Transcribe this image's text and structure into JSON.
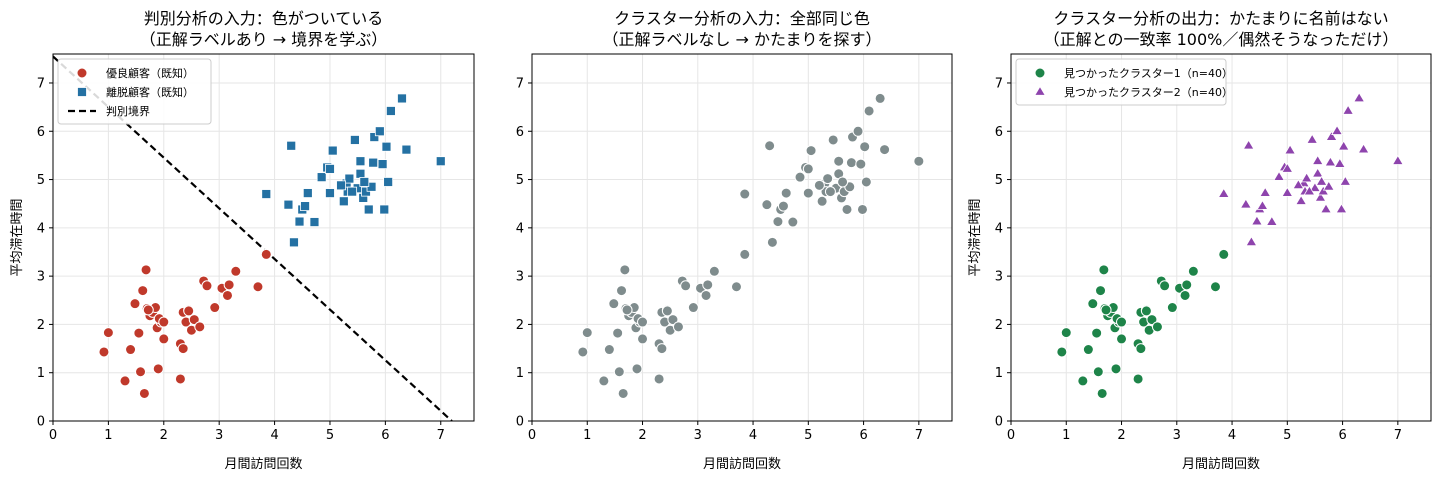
{
  "chart_data": [
    {
      "type": "scatter",
      "title": "判別分析の入力：色がついている",
      "subtitle": "（正解ラベルあり → 境界を学ぶ）",
      "xlabel": "月間訪問回数",
      "ylabel": "平均滞在時間",
      "xlim": [
        0,
        7.6
      ],
      "ylim": [
        0,
        7.6
      ],
      "xticks": [
        "0",
        "1",
        "2",
        "3",
        "4",
        "5",
        "6",
        "7"
      ],
      "yticks": [
        "0",
        "1",
        "2",
        "3",
        "4",
        "5",
        "6",
        "7"
      ],
      "grid": true,
      "legend_position": "top-left",
      "series": [
        {
          "name": "優良顧客（既知）",
          "marker": "circle",
          "color": "#c0392b",
          "points": [
            [
              0.92,
              1.43
            ],
            [
              1.0,
              1.83
            ],
            [
              1.3,
              0.83
            ],
            [
              1.4,
              1.48
            ],
            [
              1.48,
              2.43
            ],
            [
              1.55,
              1.82
            ],
            [
              1.58,
              1.02
            ],
            [
              1.62,
              2.7
            ],
            [
              1.65,
              0.57
            ],
            [
              1.68,
              3.13
            ],
            [
              1.7,
              2.33
            ],
            [
              1.75,
              2.18
            ],
            [
              1.8,
              2.25
            ],
            [
              1.85,
              2.35
            ],
            [
              1.88,
              1.93
            ],
            [
              1.9,
              1.08
            ],
            [
              1.95,
              2.05
            ],
            [
              2.0,
              1.7
            ],
            [
              2.3,
              1.6
            ],
            [
              2.3,
              0.87
            ],
            [
              2.35,
              2.25
            ],
            [
              2.35,
              1.5
            ],
            [
              2.4,
              2.05
            ],
            [
              2.45,
              2.3
            ],
            [
              2.5,
              1.88
            ],
            [
              2.55,
              2.1
            ],
            [
              2.65,
              1.95
            ],
            [
              2.72,
              2.9
            ],
            [
              2.78,
              2.8
            ],
            [
              2.92,
              2.35
            ],
            [
              3.05,
              2.75
            ],
            [
              3.15,
              2.6
            ],
            [
              3.18,
              2.82
            ],
            [
              3.3,
              3.1
            ],
            [
              3.7,
              2.78
            ],
            [
              3.85,
              3.45
            ],
            [
              2.45,
              2.28
            ],
            [
              1.92,
              2.12
            ],
            [
              2.0,
              2.05
            ],
            [
              1.72,
              2.3
            ]
          ]
        },
        {
          "name": "離脱顧客（既知）",
          "marker": "square",
          "color": "#2471a3",
          "points": [
            [
              3.85,
              4.7
            ],
            [
              4.25,
              4.48
            ],
            [
              4.3,
              5.7
            ],
            [
              4.35,
              3.7
            ],
            [
              4.45,
              4.13
            ],
            [
              4.5,
              4.38
            ],
            [
              4.55,
              4.45
            ],
            [
              4.6,
              4.72
            ],
            [
              4.72,
              4.12
            ],
            [
              4.85,
              5.05
            ],
            [
              4.95,
              5.25
            ],
            [
              5.0,
              4.72
            ],
            [
              5.05,
              5.6
            ],
            [
              5.25,
              4.55
            ],
            [
              5.3,
              4.92
            ],
            [
              5.32,
              4.75
            ],
            [
              5.35,
              5.02
            ],
            [
              5.45,
              5.82
            ],
            [
              5.5,
              4.82
            ],
            [
              5.55,
              5.38
            ],
            [
              5.55,
              5.12
            ],
            [
              5.6,
              4.62
            ],
            [
              5.65,
              4.75
            ],
            [
              5.7,
              4.38
            ],
            [
              5.75,
              4.85
            ],
            [
              5.78,
              5.35
            ],
            [
              5.8,
              5.88
            ],
            [
              5.9,
              6.0
            ],
            [
              5.95,
              5.32
            ],
            [
              5.98,
              4.38
            ],
            [
              6.02,
              5.68
            ],
            [
              6.05,
              4.95
            ],
            [
              6.1,
              6.42
            ],
            [
              6.3,
              6.68
            ],
            [
              6.38,
              5.62
            ],
            [
              7.0,
              5.38
            ],
            [
              5.4,
              4.75
            ],
            [
              5.62,
              4.95
            ],
            [
              5.2,
              4.88
            ],
            [
              5.0,
              5.22
            ]
          ]
        }
      ],
      "boundary": {
        "name": "判別境界",
        "from": [
          0,
          7.55
        ],
        "to": [
          7.2,
          0
        ]
      }
    },
    {
      "type": "scatter",
      "title": "クラスター分析の入力：全部同じ色",
      "subtitle": "（正解ラベルなし → かたまりを探す）",
      "xlabel": "月間訪問回数",
      "ylabel": "",
      "xlim": [
        0,
        7.6
      ],
      "ylim": [
        0,
        7.6
      ],
      "xticks": [
        "0",
        "1",
        "2",
        "3",
        "4",
        "5",
        "6",
        "7"
      ],
      "yticks": [
        "0",
        "1",
        "2",
        "3",
        "4",
        "5",
        "6",
        "7"
      ],
      "grid": true,
      "series": [
        {
          "name": "",
          "marker": "circle",
          "color": "#7f8c8d",
          "points": [
            [
              0.92,
              1.43
            ],
            [
              1.0,
              1.83
            ],
            [
              1.3,
              0.83
            ],
            [
              1.4,
              1.48
            ],
            [
              1.48,
              2.43
            ],
            [
              1.55,
              1.82
            ],
            [
              1.58,
              1.02
            ],
            [
              1.62,
              2.7
            ],
            [
              1.65,
              0.57
            ],
            [
              1.68,
              3.13
            ],
            [
              1.7,
              2.33
            ],
            [
              1.75,
              2.18
            ],
            [
              1.8,
              2.25
            ],
            [
              1.85,
              2.35
            ],
            [
              1.88,
              1.93
            ],
            [
              1.9,
              1.08
            ],
            [
              1.95,
              2.05
            ],
            [
              2.0,
              1.7
            ],
            [
              2.3,
              1.6
            ],
            [
              2.3,
              0.87
            ],
            [
              2.35,
              2.25
            ],
            [
              2.35,
              1.5
            ],
            [
              2.4,
              2.05
            ],
            [
              2.45,
              2.3
            ],
            [
              2.5,
              1.88
            ],
            [
              2.55,
              2.1
            ],
            [
              2.65,
              1.95
            ],
            [
              2.72,
              2.9
            ],
            [
              2.78,
              2.8
            ],
            [
              2.92,
              2.35
            ],
            [
              3.05,
              2.75
            ],
            [
              3.15,
              2.6
            ],
            [
              3.18,
              2.82
            ],
            [
              3.3,
              3.1
            ],
            [
              3.7,
              2.78
            ],
            [
              3.85,
              3.45
            ],
            [
              2.45,
              2.28
            ],
            [
              1.92,
              2.12
            ],
            [
              2.0,
              2.05
            ],
            [
              1.72,
              2.3
            ],
            [
              3.85,
              4.7
            ],
            [
              4.25,
              4.48
            ],
            [
              4.3,
              5.7
            ],
            [
              4.35,
              3.7
            ],
            [
              4.45,
              4.13
            ],
            [
              4.5,
              4.38
            ],
            [
              4.55,
              4.45
            ],
            [
              4.6,
              4.72
            ],
            [
              4.72,
              4.12
            ],
            [
              4.85,
              5.05
            ],
            [
              4.95,
              5.25
            ],
            [
              5.0,
              4.72
            ],
            [
              5.05,
              5.6
            ],
            [
              5.25,
              4.55
            ],
            [
              5.3,
              4.92
            ],
            [
              5.32,
              4.75
            ],
            [
              5.35,
              5.02
            ],
            [
              5.45,
              5.82
            ],
            [
              5.5,
              4.82
            ],
            [
              5.55,
              5.38
            ],
            [
              5.55,
              5.12
            ],
            [
              5.6,
              4.62
            ],
            [
              5.65,
              4.75
            ],
            [
              5.7,
              4.38
            ],
            [
              5.75,
              4.85
            ],
            [
              5.78,
              5.35
            ],
            [
              5.8,
              5.88
            ],
            [
              5.9,
              6.0
            ],
            [
              5.95,
              5.32
            ],
            [
              5.98,
              4.38
            ],
            [
              6.02,
              5.68
            ],
            [
              6.05,
              4.95
            ],
            [
              6.1,
              6.42
            ],
            [
              6.3,
              6.68
            ],
            [
              6.38,
              5.62
            ],
            [
              7.0,
              5.38
            ],
            [
              5.4,
              4.75
            ],
            [
              5.62,
              4.95
            ],
            [
              5.2,
              4.88
            ],
            [
              5.0,
              5.22
            ]
          ]
        }
      ]
    },
    {
      "type": "scatter",
      "title": "クラスター分析の出力：かたまりに名前はない",
      "subtitle": "（正解との一致率 100%／偶然そうなっただけ）",
      "xlabel": "月間訪問回数",
      "ylabel": "平均滞在時間",
      "xlim": [
        0,
        7.6
      ],
      "ylim": [
        0,
        7.6
      ],
      "xticks": [
        "0",
        "1",
        "2",
        "3",
        "4",
        "5",
        "6",
        "7"
      ],
      "yticks": [
        "0",
        "1",
        "2",
        "3",
        "4",
        "5",
        "6",
        "7"
      ],
      "grid": true,
      "legend_position": "top-left",
      "series": [
        {
          "name": "見つかったクラスター1（n=40）",
          "marker": "circle",
          "color": "#1e8449",
          "points": [
            [
              0.92,
              1.43
            ],
            [
              1.0,
              1.83
            ],
            [
              1.3,
              0.83
            ],
            [
              1.4,
              1.48
            ],
            [
              1.48,
              2.43
            ],
            [
              1.55,
              1.82
            ],
            [
              1.58,
              1.02
            ],
            [
              1.62,
              2.7
            ],
            [
              1.65,
              0.57
            ],
            [
              1.68,
              3.13
            ],
            [
              1.7,
              2.33
            ],
            [
              1.75,
              2.18
            ],
            [
              1.8,
              2.25
            ],
            [
              1.85,
              2.35
            ],
            [
              1.88,
              1.93
            ],
            [
              1.9,
              1.08
            ],
            [
              1.95,
              2.05
            ],
            [
              2.0,
              1.7
            ],
            [
              2.3,
              1.6
            ],
            [
              2.3,
              0.87
            ],
            [
              2.35,
              2.25
            ],
            [
              2.35,
              1.5
            ],
            [
              2.4,
              2.05
            ],
            [
              2.45,
              2.3
            ],
            [
              2.5,
              1.88
            ],
            [
              2.55,
              2.1
            ],
            [
              2.65,
              1.95
            ],
            [
              2.72,
              2.9
            ],
            [
              2.78,
              2.8
            ],
            [
              2.92,
              2.35
            ],
            [
              3.05,
              2.75
            ],
            [
              3.15,
              2.6
            ],
            [
              3.18,
              2.82
            ],
            [
              3.3,
              3.1
            ],
            [
              3.7,
              2.78
            ],
            [
              3.85,
              3.45
            ],
            [
              2.45,
              2.28
            ],
            [
              1.92,
              2.12
            ],
            [
              2.0,
              2.05
            ],
            [
              1.72,
              2.3
            ]
          ]
        },
        {
          "name": "見つかったクラスター2（n=40）",
          "marker": "triangle",
          "color": "#8e44ad",
          "points": [
            [
              3.85,
              4.7
            ],
            [
              4.25,
              4.48
            ],
            [
              4.3,
              5.7
            ],
            [
              4.35,
              3.7
            ],
            [
              4.45,
              4.13
            ],
            [
              4.5,
              4.38
            ],
            [
              4.55,
              4.45
            ],
            [
              4.6,
              4.72
            ],
            [
              4.72,
              4.12
            ],
            [
              4.85,
              5.05
            ],
            [
              4.95,
              5.25
            ],
            [
              5.0,
              4.72
            ],
            [
              5.05,
              5.6
            ],
            [
              5.25,
              4.55
            ],
            [
              5.3,
              4.92
            ],
            [
              5.32,
              4.75
            ],
            [
              5.35,
              5.02
            ],
            [
              5.45,
              5.82
            ],
            [
              5.5,
              4.82
            ],
            [
              5.55,
              5.38
            ],
            [
              5.55,
              5.12
            ],
            [
              5.6,
              4.62
            ],
            [
              5.65,
              4.75
            ],
            [
              5.7,
              4.38
            ],
            [
              5.75,
              4.85
            ],
            [
              5.78,
              5.35
            ],
            [
              5.8,
              5.88
            ],
            [
              5.9,
              6.0
            ],
            [
              5.95,
              5.32
            ],
            [
              5.98,
              4.38
            ],
            [
              6.02,
              5.68
            ],
            [
              6.05,
              4.95
            ],
            [
              6.1,
              6.42
            ],
            [
              6.3,
              6.68
            ],
            [
              6.38,
              5.62
            ],
            [
              7.0,
              5.38
            ],
            [
              5.4,
              4.75
            ],
            [
              5.62,
              4.95
            ],
            [
              5.2,
              4.88
            ],
            [
              5.0,
              5.22
            ]
          ]
        }
      ]
    }
  ]
}
